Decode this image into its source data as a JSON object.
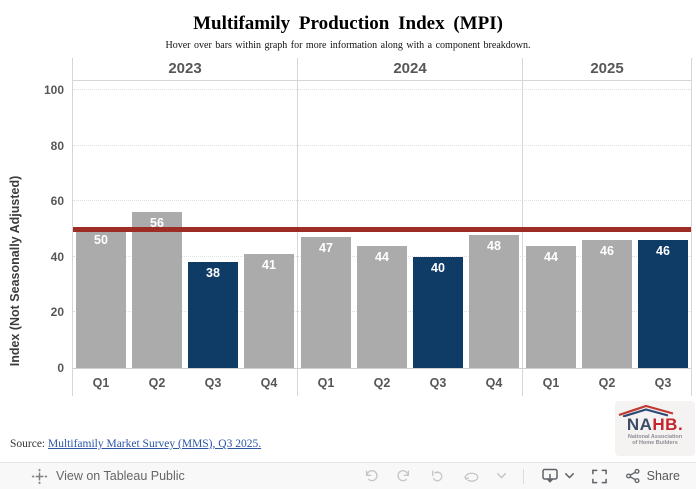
{
  "title": "Multifamily Production Index (MPI)",
  "subtitle": "Hover over bars within graph for more information along with a component breakdown.",
  "chart_data": {
    "type": "bar",
    "title": "Multifamily Production Index (MPI)",
    "xlabel": "",
    "ylabel": "Index (Not Seasonally Adjusted)",
    "ylim": [
      0,
      103
    ],
    "yticks": [
      0,
      20,
      40,
      60,
      80,
      100
    ],
    "grid": true,
    "legend_position": "none",
    "reference_line": {
      "value": 50,
      "color": "#9d2c24"
    },
    "groups": [
      {
        "year": "2023",
        "categories": [
          "Q1",
          "Q2",
          "Q3",
          "Q4"
        ],
        "values": [
          50,
          56,
          38,
          41
        ],
        "highlight": [
          false,
          false,
          true,
          false
        ]
      },
      {
        "year": "2024",
        "categories": [
          "Q1",
          "Q2",
          "Q3",
          "Q4"
        ],
        "values": [
          47,
          44,
          40,
          48
        ],
        "highlight": [
          false,
          false,
          true,
          false
        ]
      },
      {
        "year": "2025",
        "categories": [
          "Q1",
          "Q2",
          "Q3"
        ],
        "values": [
          44,
          46,
          46
        ],
        "highlight": [
          false,
          false,
          true
        ]
      }
    ],
    "colors": {
      "bar_default": "#ababab",
      "bar_highlight": "#0e3c66",
      "label_text": "#575757"
    }
  },
  "source": {
    "label": "Source:",
    "link_text": "Multifamily Market Survey (MMS), Q3 2025."
  },
  "logo": {
    "na": "NA",
    "hb": "HB.",
    "line1": "National Association",
    "line2": "of Home Builders"
  },
  "toolbar": {
    "view_label": "View on Tableau Public",
    "share_label": "Share"
  }
}
